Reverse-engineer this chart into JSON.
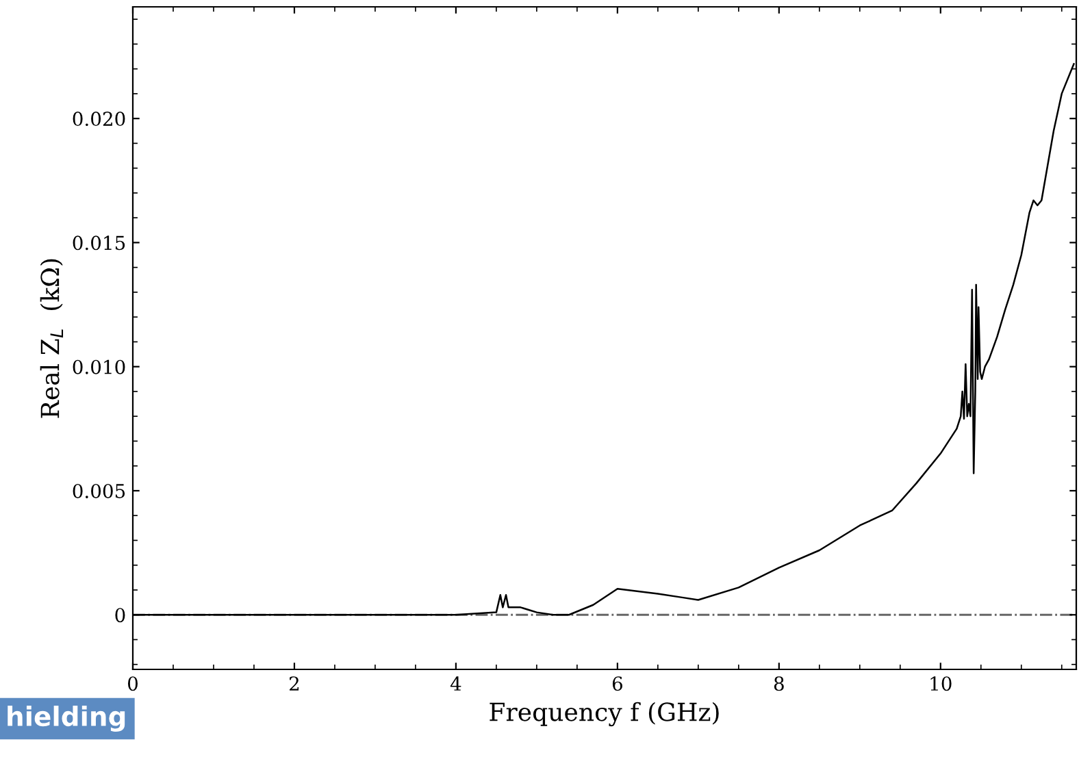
{
  "chart_data": {
    "type": "line",
    "xlabel": "Frequency f (GHz)",
    "ylabel": "Real Z$_{L}$  (kΩ)",
    "series": [
      {
        "color": "#000000",
        "x": [
          0,
          1,
          2,
          3,
          4,
          4.5,
          4.55,
          4.58,
          4.62,
          4.65,
          4.7,
          4.8,
          4.9,
          5.0,
          5.2,
          5.4,
          5.7,
          6.0,
          6.5,
          6.8,
          7.0,
          7.5,
          8.0,
          8.5,
          9.0,
          9.4,
          9.7,
          10.0,
          10.2,
          10.25,
          10.27,
          10.29,
          10.31,
          10.33,
          10.35,
          10.37,
          10.39,
          10.41,
          10.43,
          10.44,
          10.46,
          10.47,
          10.49,
          10.51,
          10.55,
          10.6,
          10.7,
          10.8,
          10.9,
          11.0,
          11.1,
          11.15,
          11.2,
          11.25,
          11.4,
          11.5,
          11.65
        ],
        "values": [
          0,
          0,
          0,
          0,
          0,
          0.0001,
          0.0008,
          0.0003,
          0.0008,
          0.0003,
          0.0003,
          0.0003,
          0.0002,
          0.0001,
          0.0,
          0.0,
          0.0004,
          0.00105,
          0.00085,
          0.0007,
          0.0006,
          0.0011,
          0.0019,
          0.0026,
          0.0036,
          0.0042,
          0.0053,
          0.0065,
          0.0075,
          0.008,
          0.009,
          0.0079,
          0.0101,
          0.008,
          0.0085,
          0.008,
          0.0131,
          0.0057,
          0.009,
          0.0133,
          0.0095,
          0.0124,
          0.0098,
          0.0095,
          0.01,
          0.0103,
          0.0112,
          0.0123,
          0.0133,
          0.0145,
          0.0162,
          0.0167,
          0.0165,
          0.0167,
          0.0195,
          0.021,
          0.0222
        ]
      }
    ],
    "xlim": [
      0,
      11.68
    ],
    "xticks": [
      0,
      2,
      4,
      6,
      8,
      10
    ],
    "ylim": [
      -0.0022,
      0.0245
    ],
    "yticks": [
      {
        "value": 0,
        "label": "0"
      },
      0.005,
      {
        "value": 0.01,
        "label": "0.010"
      },
      0.015,
      {
        "value": 0.02,
        "label": "0.020"
      }
    ],
    "ref_lines": [
      {
        "axis": "y",
        "value": 0,
        "color": "#666666",
        "line_style": "dashdot"
      }
    ],
    "annotations": [
      "hielding"
    ],
    "grid": false,
    "legend": false
  }
}
